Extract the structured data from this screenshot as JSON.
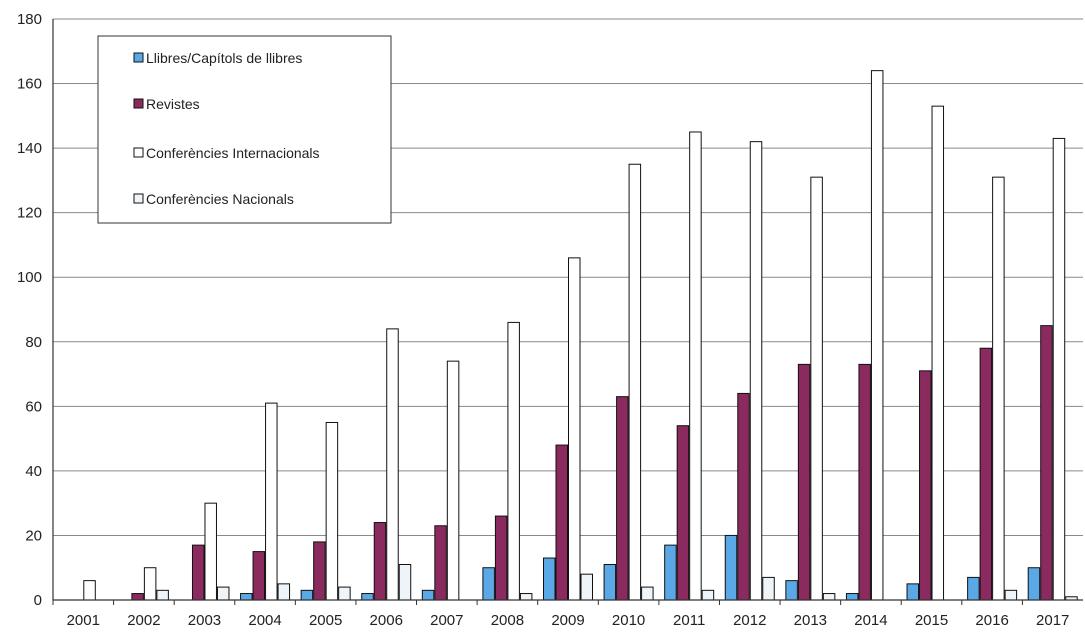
{
  "chart_data": {
    "type": "bar",
    "title": "",
    "xlabel": "",
    "ylabel": "",
    "ylim": [
      0,
      180
    ],
    "yticks": [
      "0",
      "20",
      "40",
      "60",
      "80",
      "100",
      "120",
      "140",
      "160",
      "180"
    ],
    "grid": true,
    "legend_position": "top-left",
    "categories": [
      "2001",
      "2002",
      "2003",
      "2004",
      "2005",
      "2006",
      "2007",
      "2008",
      "2009",
      "2010",
      "2011",
      "2012",
      "2013",
      "2014",
      "2015",
      "2016",
      "2017"
    ],
    "series": [
      {
        "name": "Llibres/Capítols de llibres",
        "color": "#5aa9e6",
        "values": [
          0,
          0,
          0,
          2,
          3,
          2,
          3,
          10,
          13,
          11,
          17,
          20,
          6,
          2,
          5,
          7,
          10
        ]
      },
      {
        "name": "Revistes",
        "color": "#8b2a5e",
        "values": [
          0,
          2,
          17,
          15,
          18,
          24,
          23,
          26,
          48,
          63,
          54,
          64,
          73,
          73,
          71,
          78,
          85
        ]
      },
      {
        "name": "Conferències Internacionals",
        "color": "#ffffff",
        "values": [
          6,
          10,
          30,
          61,
          55,
          84,
          74,
          86,
          106,
          135,
          145,
          142,
          131,
          164,
          153,
          131,
          143
        ]
      },
      {
        "name": "Conferències Nacionals",
        "color": "#eef4f7",
        "values": [
          0,
          3,
          4,
          5,
          4,
          11,
          0,
          2,
          8,
          4,
          3,
          7,
          2,
          0,
          0,
          3,
          1
        ]
      }
    ]
  }
}
